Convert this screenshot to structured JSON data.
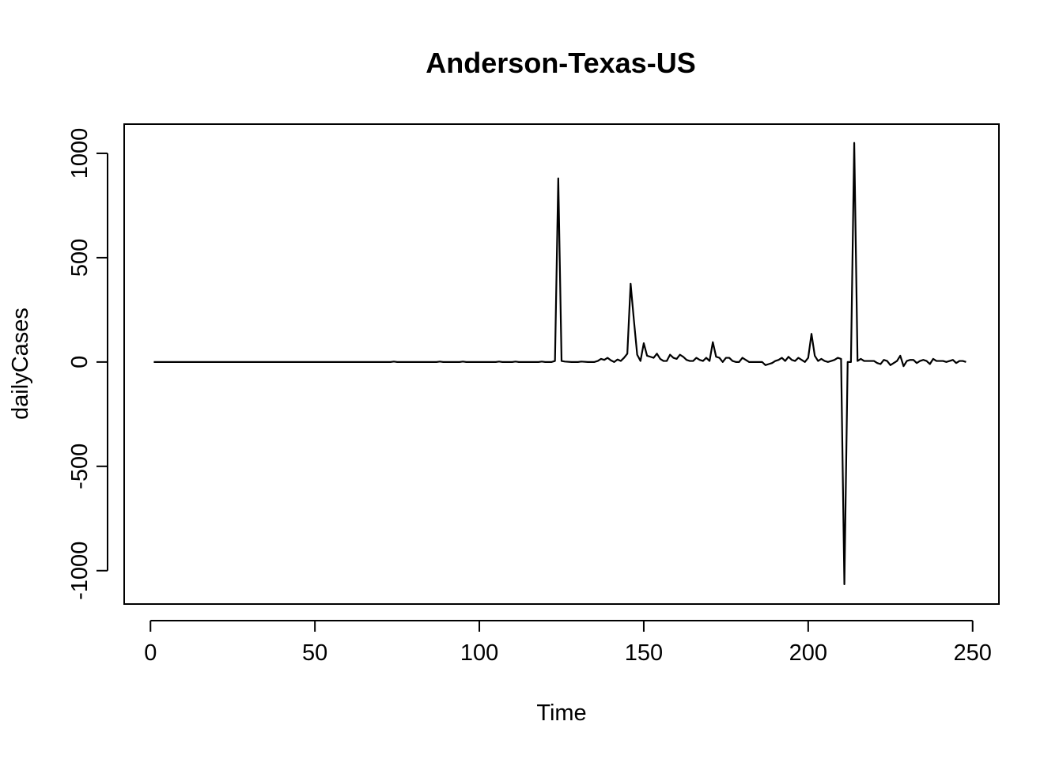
{
  "chart_data": {
    "type": "line",
    "title": "Anderson-Texas-US",
    "xlabel": "Time",
    "ylabel": "dailyCases",
    "xlim": [
      -8,
      258
    ],
    "ylim": [
      -1160,
      1140
    ],
    "x_ticks": [
      0,
      50,
      100,
      150,
      200,
      250
    ],
    "x_tick_labels": [
      "0",
      "50",
      "100",
      "150",
      "200",
      "250"
    ],
    "y_ticks": [
      -1000,
      -500,
      0,
      500,
      1000
    ],
    "y_tick_labels": [
      "-1000",
      "-500",
      "0",
      "500",
      "1000"
    ],
    "grid": false,
    "line_color": "#000000",
    "series": [
      {
        "points": [
          [
            1,
            0
          ],
          [
            2,
            0
          ],
          [
            10,
            0
          ],
          [
            20,
            0
          ],
          [
            30,
            0
          ],
          [
            40,
            0
          ],
          [
            50,
            0
          ],
          [
            60,
            0
          ],
          [
            70,
            0
          ],
          [
            73,
            0
          ],
          [
            74,
            2
          ],
          [
            75,
            0
          ],
          [
            80,
            0
          ],
          [
            87,
            0
          ],
          [
            88,
            2
          ],
          [
            89,
            0
          ],
          [
            94,
            0
          ],
          [
            95,
            2
          ],
          [
            96,
            0
          ],
          [
            100,
            0
          ],
          [
            105,
            0
          ],
          [
            106,
            2
          ],
          [
            107,
            0
          ],
          [
            110,
            0
          ],
          [
            111,
            2
          ],
          [
            112,
            0
          ],
          [
            118,
            0
          ],
          [
            119,
            2
          ],
          [
            120,
            0
          ],
          [
            122,
            0
          ],
          [
            123,
            5
          ],
          [
            124,
            880
          ],
          [
            125,
            5
          ],
          [
            126,
            2
          ],
          [
            128,
            0
          ],
          [
            130,
            0
          ],
          [
            131,
            2
          ],
          [
            133,
            0
          ],
          [
            135,
            0
          ],
          [
            136,
            5
          ],
          [
            137,
            15
          ],
          [
            138,
            10
          ],
          [
            139,
            20
          ],
          [
            140,
            8
          ],
          [
            141,
            0
          ],
          [
            142,
            12
          ],
          [
            143,
            5
          ],
          [
            144,
            20
          ],
          [
            145,
            40
          ],
          [
            146,
            375
          ],
          [
            147,
            200
          ],
          [
            148,
            35
          ],
          [
            149,
            5
          ],
          [
            150,
            90
          ],
          [
            151,
            30
          ],
          [
            152,
            25
          ],
          [
            153,
            20
          ],
          [
            154,
            40
          ],
          [
            155,
            15
          ],
          [
            156,
            5
          ],
          [
            157,
            5
          ],
          [
            158,
            35
          ],
          [
            159,
            20
          ],
          [
            160,
            15
          ],
          [
            161,
            35
          ],
          [
            162,
            25
          ],
          [
            163,
            10
          ],
          [
            164,
            5
          ],
          [
            165,
            5
          ],
          [
            166,
            20
          ],
          [
            167,
            10
          ],
          [
            168,
            5
          ],
          [
            169,
            20
          ],
          [
            170,
            5
          ],
          [
            171,
            95
          ],
          [
            172,
            25
          ],
          [
            173,
            20
          ],
          [
            174,
            0
          ],
          [
            175,
            20
          ],
          [
            176,
            20
          ],
          [
            177,
            5
          ],
          [
            178,
            0
          ],
          [
            179,
            0
          ],
          [
            180,
            20
          ],
          [
            181,
            10
          ],
          [
            182,
            0
          ],
          [
            183,
            0
          ],
          [
            184,
            0
          ],
          [
            185,
            0
          ],
          [
            186,
            0
          ],
          [
            187,
            -15
          ],
          [
            188,
            -10
          ],
          [
            189,
            -5
          ],
          [
            190,
            5
          ],
          [
            191,
            10
          ],
          [
            192,
            20
          ],
          [
            193,
            5
          ],
          [
            194,
            25
          ],
          [
            195,
            10
          ],
          [
            196,
            5
          ],
          [
            197,
            20
          ],
          [
            198,
            10
          ],
          [
            199,
            0
          ],
          [
            200,
            20
          ],
          [
            201,
            135
          ],
          [
            202,
            30
          ],
          [
            203,
            5
          ],
          [
            204,
            15
          ],
          [
            205,
            5
          ],
          [
            206,
            0
          ],
          [
            207,
            5
          ],
          [
            208,
            10
          ],
          [
            209,
            20
          ],
          [
            210,
            15
          ],
          [
            211,
            -1065
          ],
          [
            212,
            0
          ],
          [
            213,
            0
          ],
          [
            214,
            1050
          ],
          [
            215,
            5
          ],
          [
            216,
            15
          ],
          [
            217,
            5
          ],
          [
            218,
            5
          ],
          [
            219,
            5
          ],
          [
            220,
            5
          ],
          [
            221,
            -5
          ],
          [
            222,
            -10
          ],
          [
            223,
            10
          ],
          [
            224,
            5
          ],
          [
            225,
            -15
          ],
          [
            226,
            -5
          ],
          [
            227,
            5
          ],
          [
            228,
            30
          ],
          [
            229,
            -20
          ],
          [
            230,
            5
          ],
          [
            231,
            10
          ],
          [
            232,
            10
          ],
          [
            233,
            -5
          ],
          [
            234,
            5
          ],
          [
            235,
            10
          ],
          [
            236,
            5
          ],
          [
            237,
            -10
          ],
          [
            238,
            15
          ],
          [
            239,
            5
          ],
          [
            240,
            5
          ],
          [
            241,
            5
          ],
          [
            242,
            0
          ],
          [
            243,
            5
          ],
          [
            244,
            10
          ],
          [
            245,
            -5
          ],
          [
            246,
            5
          ],
          [
            247,
            5
          ],
          [
            248,
            0
          ]
        ]
      }
    ]
  }
}
